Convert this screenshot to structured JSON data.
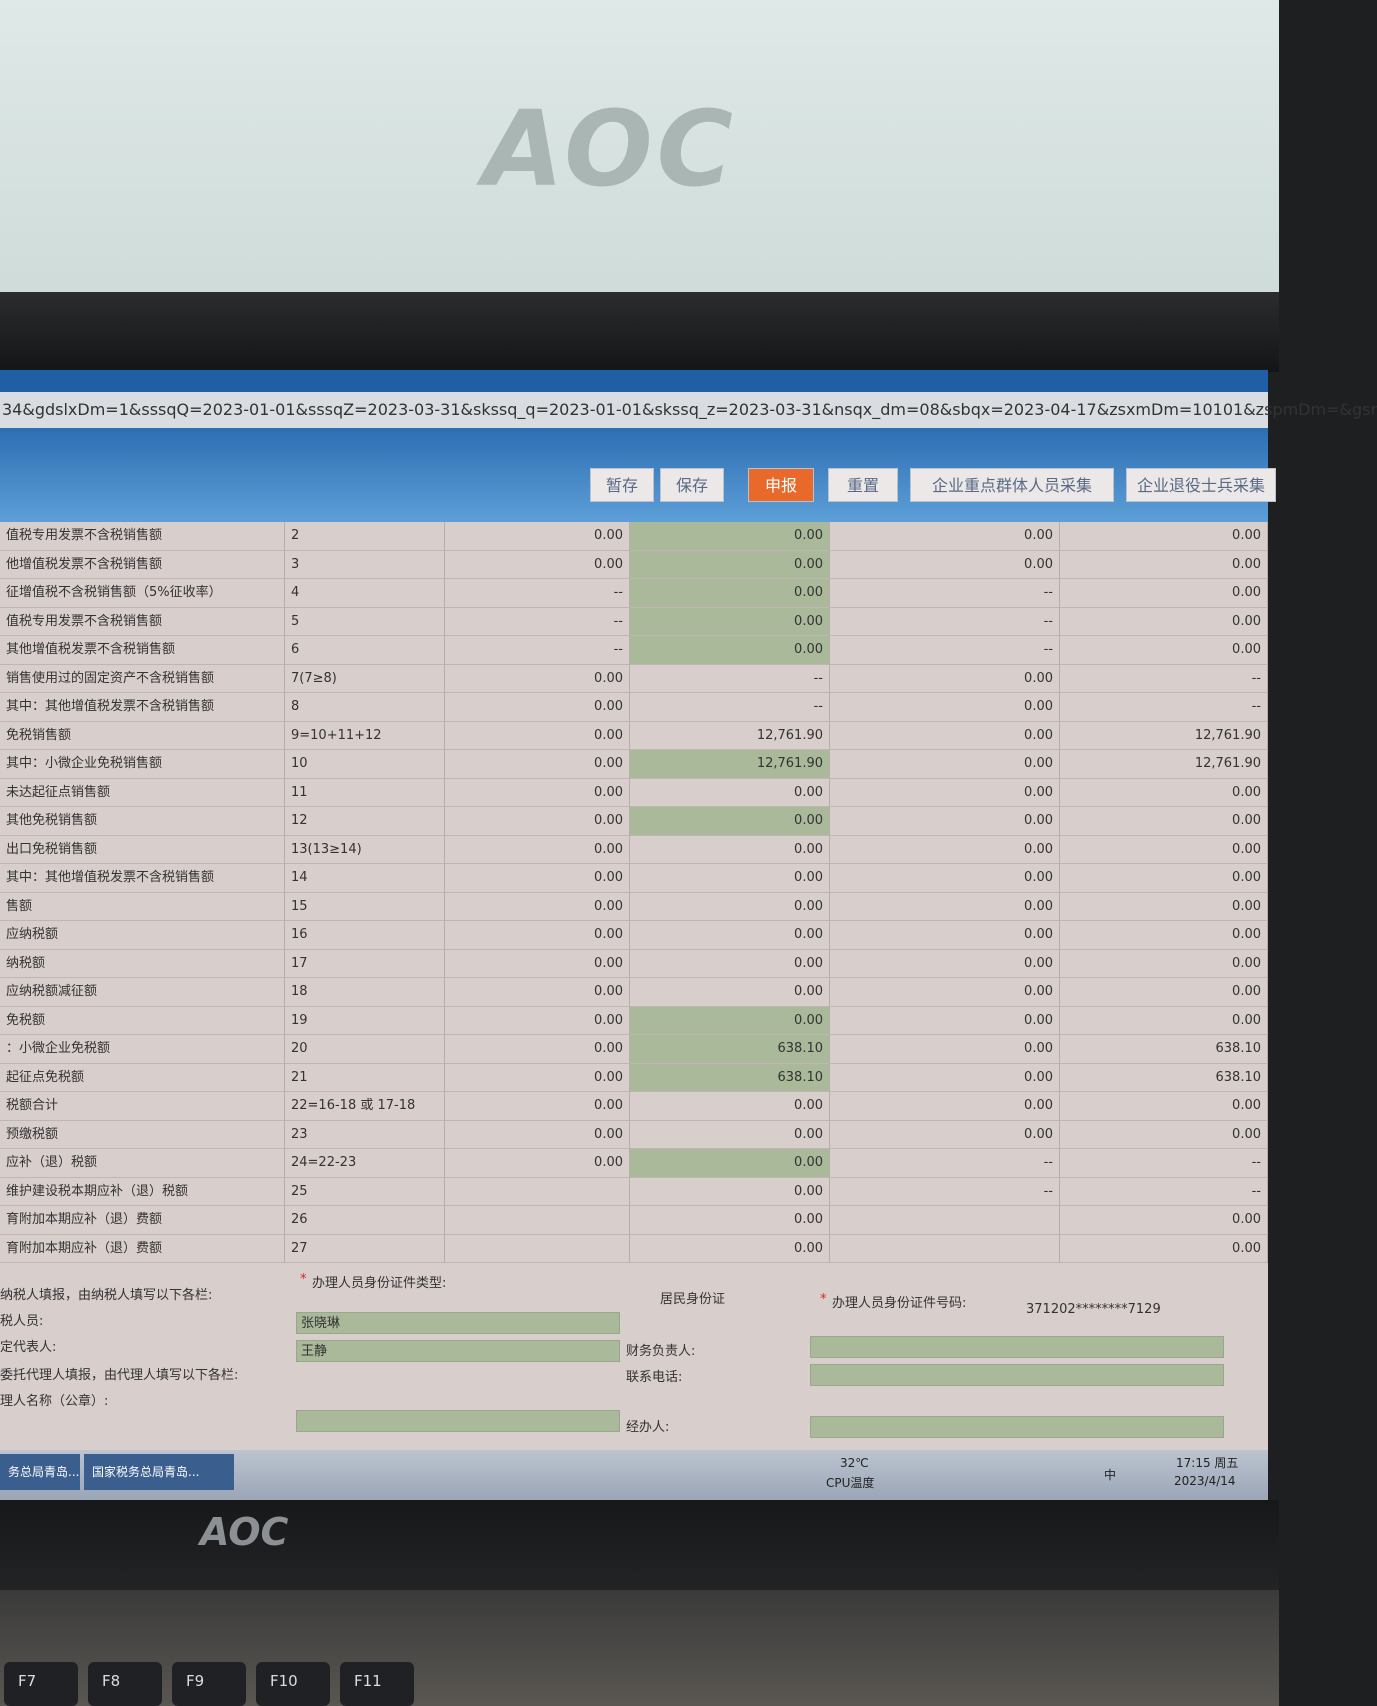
{
  "wall_logo": "AOC",
  "window": {
    "url": "34&gdslxDm=1&sssqQ=2023-01-01&sssqZ=2023-03-31&skssq_q=2023-01-01&skssq_z=2023-03-31&nsqx_dm=08&sbqx=2023-04-17&zsxmDm=10101&zspmDm=&gsr"
  },
  "toolbar": {
    "buttons": [
      "暂存",
      "保存",
      "申报",
      "重置",
      "企业重点群体人员采集",
      "企业退役士兵采集"
    ]
  },
  "table": {
    "rows": [
      {
        "label": "值税专用发票不含税销售额",
        "line": "2",
        "cells": [
          "0.00",
          "0.00",
          "0.00",
          "0.00"
        ]
      },
      {
        "label": "他增值税发票不含税销售额",
        "line": "3",
        "cells": [
          "0.00",
          "0.00",
          "0.00",
          "0.00"
        ]
      },
      {
        "label": "征增值税不含税销售额（5%征收率）",
        "line": "4",
        "cells": [
          "--",
          "0.00",
          "--",
          "0.00"
        ]
      },
      {
        "label": "值税专用发票不含税销售额",
        "line": "5",
        "cells": [
          "--",
          "0.00",
          "--",
          "0.00"
        ]
      },
      {
        "label": "其他增值税发票不含税销售额",
        "line": "6",
        "cells": [
          "--",
          "0.00",
          "--",
          "0.00"
        ]
      },
      {
        "label": "销售使用过的固定资产不含税销售额",
        "line": "7(7≥8)",
        "cells": [
          "0.00",
          "--",
          "0.00",
          "--"
        ]
      },
      {
        "label": "其中：其他增值税发票不含税销售额",
        "line": "8",
        "cells": [
          "0.00",
          "--",
          "0.00",
          "--"
        ]
      },
      {
        "label": "免税销售额",
        "line": "9=10+11+12",
        "cells": [
          "0.00",
          "12,761.90",
          "0.00",
          "12,761.90"
        ]
      },
      {
        "label": "其中：小微企业免税销售额",
        "line": "10",
        "cells": [
          "0.00",
          "12,761.90",
          "0.00",
          "12,761.90"
        ]
      },
      {
        "label": "未达起征点销售额",
        "line": "11",
        "cells": [
          "0.00",
          "0.00",
          "0.00",
          "0.00"
        ]
      },
      {
        "label": "其他免税销售额",
        "line": "12",
        "cells": [
          "0.00",
          "0.00",
          "0.00",
          "0.00"
        ]
      },
      {
        "label": "出口免税销售额",
        "line": "13(13≥14)",
        "cells": [
          "0.00",
          "0.00",
          "0.00",
          "0.00"
        ]
      },
      {
        "label": "其中：其他增值税发票不含税销售额",
        "line": "14",
        "cells": [
          "0.00",
          "0.00",
          "0.00",
          "0.00"
        ]
      },
      {
        "label": "售额",
        "line": "15",
        "cells": [
          "0.00",
          "0.00",
          "0.00",
          "0.00"
        ]
      },
      {
        "label": "应纳税额",
        "line": "16",
        "cells": [
          "0.00",
          "0.00",
          "0.00",
          "0.00"
        ]
      },
      {
        "label": "纳税额",
        "line": "17",
        "cells": [
          "0.00",
          "0.00",
          "0.00",
          "0.00"
        ]
      },
      {
        "label": "应纳税额减征额",
        "line": "18",
        "cells": [
          "0.00",
          "0.00",
          "0.00",
          "0.00"
        ]
      },
      {
        "label": "免税额",
        "line": "19",
        "cells": [
          "0.00",
          "0.00",
          "0.00",
          "0.00"
        ]
      },
      {
        "label": "：小微企业免税额",
        "line": "20",
        "cells": [
          "0.00",
          "638.10",
          "0.00",
          "638.10"
        ]
      },
      {
        "label": "起征点免税额",
        "line": "21",
        "cells": [
          "0.00",
          "638.10",
          "0.00",
          "638.10"
        ]
      },
      {
        "label": "税额合计",
        "line": "22=16-18 或 17-18",
        "cells": [
          "0.00",
          "0.00",
          "0.00",
          "0.00"
        ]
      },
      {
        "label": "预缴税额",
        "line": "23",
        "cells": [
          "0.00",
          "0.00",
          "0.00",
          "0.00"
        ]
      },
      {
        "label": "应补（退）税额",
        "line": "24=22-23",
        "cells": [
          "0.00",
          "0.00",
          "--",
          "--"
        ]
      },
      {
        "label": "维护建设税本期应补（退）税额",
        "line": "25",
        "cells": [
          null,
          "0.00",
          "--",
          "--"
        ]
      },
      {
        "label": "育附加本期应补（退）费额",
        "line": "26",
        "cells": [
          null,
          "0.00",
          null,
          "0.00"
        ]
      },
      {
        "label": "育附加本期应补（退）费额",
        "line": "27",
        "cells": [
          null,
          "0.00",
          null,
          "0.00"
        ]
      }
    ]
  },
  "form": {
    "required_mark": "*",
    "id_type_label": "办理人员身份证件类型:",
    "id_type": "居民身份证",
    "id_number_label": "办理人员身份证件号码:",
    "id_number": "371202********7129",
    "taxpayer_note": "纳税人填报，由纳税人填写以下各栏:",
    "staff_label": "税人员:",
    "staff": "张晓琳",
    "legal_rep_label": "定代表人:",
    "legal_rep": "王静",
    "finance_label": "财务负责人:",
    "agent_note": "委托代理人填报，由代理人填写以下各栏:",
    "phone_label": "联系电话:",
    "agent_name_label": "理人名称（公章）:",
    "handler_label": "经办人:"
  },
  "taskbar": {
    "tabs": [
      "务总局青岛...",
      "国家税务总局青岛..."
    ],
    "temperature": "32℃",
    "cpu_label": "CPU温度",
    "ime": "中",
    "time": "17:15 周五",
    "date": "2023/4/14"
  },
  "bezel_logo": "AOC",
  "keys": [
    "F7",
    "F8",
    "F9",
    "F10",
    "F11"
  ]
}
